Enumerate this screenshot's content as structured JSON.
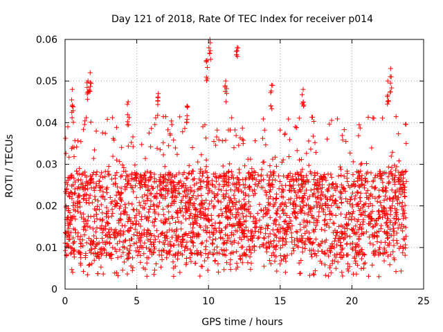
{
  "chart_data": {
    "type": "scatter",
    "title": "Day 121 of 2018, Rate Of TEC Index for receiver p014",
    "xlabel": "GPS time / hours",
    "ylabel": "ROTI / TECUs",
    "xlim": [
      0,
      25
    ],
    "ylim": [
      0,
      0.06
    ],
    "xticks": [
      0,
      5,
      10,
      15,
      20,
      25
    ],
    "xtick_labels": [
      "0",
      "5",
      "10",
      "15",
      "20",
      "25"
    ],
    "yticks": [
      0,
      0.01,
      0.02,
      0.03,
      0.04,
      0.05,
      0.06
    ],
    "ytick_labels": [
      "0",
      "0.01",
      "0.02",
      "0.03",
      "0.04",
      "0.05",
      "0.06"
    ],
    "grid": true,
    "marker": "+",
    "color": "#ff0000",
    "series": [
      {
        "name": "p014",
        "x_range": [
          0,
          23.8
        ],
        "typical_band": [
          0.006,
          0.03
        ],
        "notable_peaks": [
          {
            "x": 0.5,
            "y": 0.048
          },
          {
            "x": 1.6,
            "y": 0.05
          },
          {
            "x": 1.75,
            "y": 0.052
          },
          {
            "x": 4.4,
            "y": 0.045
          },
          {
            "x": 6.5,
            "y": 0.047
          },
          {
            "x": 8.5,
            "y": 0.044
          },
          {
            "x": 9.9,
            "y": 0.055
          },
          {
            "x": 10.1,
            "y": 0.06
          },
          {
            "x": 11.2,
            "y": 0.05
          },
          {
            "x": 12.0,
            "y": 0.058
          },
          {
            "x": 14.4,
            "y": 0.049
          },
          {
            "x": 16.6,
            "y": 0.048
          },
          {
            "x": 22.5,
            "y": 0.05
          },
          {
            "x": 22.7,
            "y": 0.053
          }
        ]
      }
    ]
  }
}
